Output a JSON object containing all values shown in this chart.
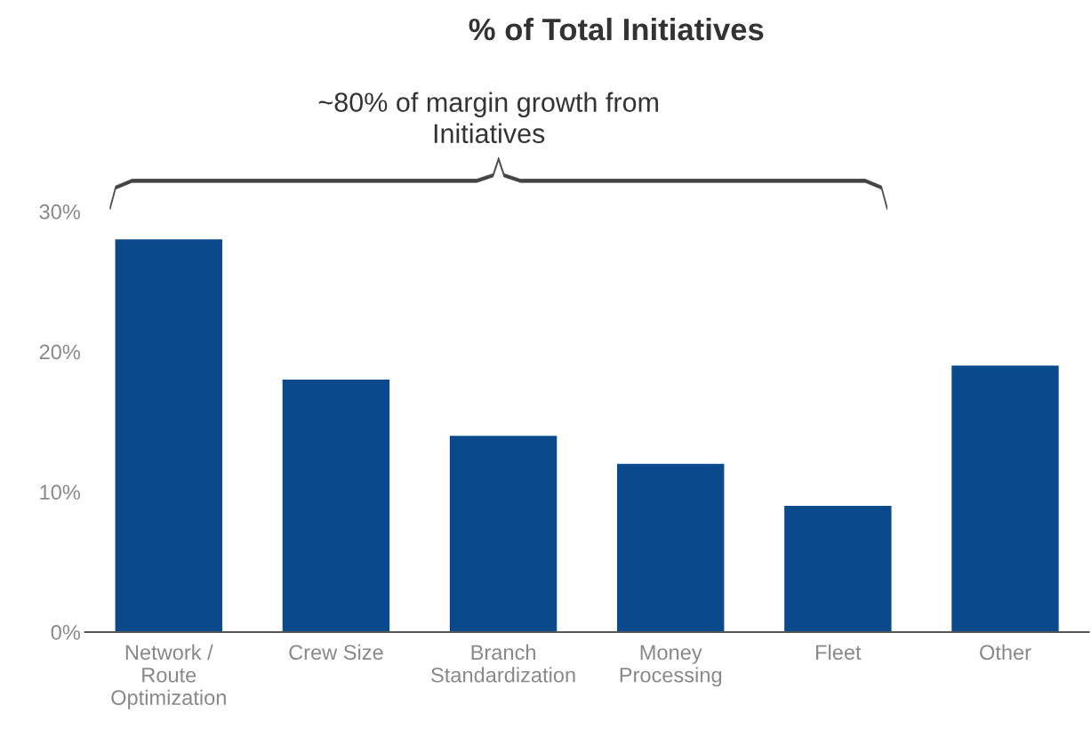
{
  "chart_data": {
    "type": "bar",
    "title": "% of Total Initiatives",
    "categories": [
      "Network /\nRoute\nOptimization",
      "Crew Size",
      "Branch\nStandardization",
      "Money\nProcessing",
      "Fleet",
      "Other"
    ],
    "values": [
      28,
      18,
      14,
      12,
      9,
      19
    ],
    "color": "#0a4a8c",
    "ylim": [
      0,
      30
    ],
    "yticks": [
      {
        "value": 0,
        "label": "0%"
      },
      {
        "value": 10,
        "label": "10%"
      },
      {
        "value": 20,
        "label": "20%"
      },
      {
        "value": 30,
        "label": "30%"
      }
    ],
    "annotations": [
      "~80% of margin growth from\nInitiatives"
    ],
    "grid": false,
    "legend": false
  }
}
